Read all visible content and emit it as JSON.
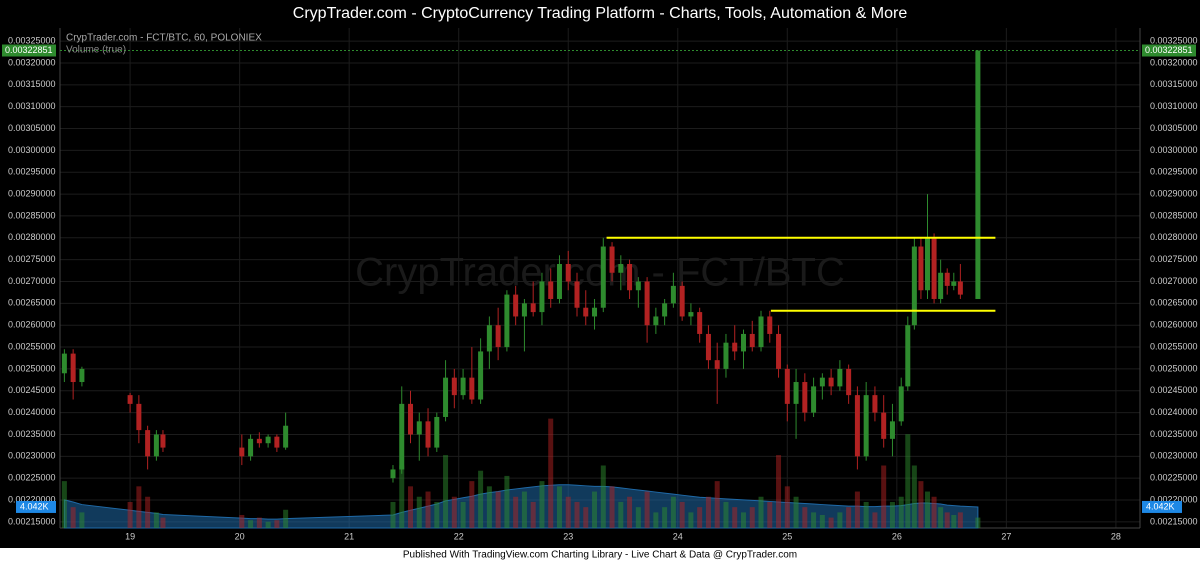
{
  "header": {
    "title": "CrypTrader.com  -  CryptoCurrency Trading Platform  -  Charts, Tools, Automation & More"
  },
  "footer": {
    "text": "Published With TradingView.com Charting Library - Live Chart & Data @ CrypTrader.com"
  },
  "chart_data": {
    "type": "candlestick",
    "title": "CrypTrader.com - FCT/BTC, 60, POLONIEX",
    "subtitle": "Volume (true)",
    "watermark": "CrypTrader.com - FCT/BTC",
    "up_color": "#2e8b2e",
    "down_color": "#b22222",
    "volume_ma_color": "#1f6aa8",
    "grid": true,
    "xlim": [
      18.36,
      28.22
    ],
    "xticks": [
      19,
      20,
      21,
      22,
      23,
      24,
      25,
      26,
      27,
      28
    ],
    "ylim": [
      0.002136,
      0.00328
    ],
    "yticks": [
      {
        "value": 0.00215,
        "label": "0.00215000"
      },
      {
        "value": 0.0022,
        "label": "0.00220000"
      },
      {
        "value": 0.00225,
        "label": "0.00225000"
      },
      {
        "value": 0.0023,
        "label": "0.00230000"
      },
      {
        "value": 0.00235,
        "label": "0.00235000"
      },
      {
        "value": 0.0024,
        "label": "0.00240000"
      },
      {
        "value": 0.00245,
        "label": "0.00245000"
      },
      {
        "value": 0.0025,
        "label": "0.00250000"
      },
      {
        "value": 0.00255,
        "label": "0.00255000"
      },
      {
        "value": 0.0026,
        "label": "0.00260000"
      },
      {
        "value": 0.00265,
        "label": "0.00265000"
      },
      {
        "value": 0.0027,
        "label": "0.00270000"
      },
      {
        "value": 0.00275,
        "label": "0.00275000"
      },
      {
        "value": 0.0028,
        "label": "0.00280000"
      },
      {
        "value": 0.00285,
        "label": "0.00285000"
      },
      {
        "value": 0.0029,
        "label": "0.00290000"
      },
      {
        "value": 0.00295,
        "label": "0.00295000"
      },
      {
        "value": 0.003,
        "label": "0.00300000"
      },
      {
        "value": 0.00305,
        "label": "0.00305000"
      },
      {
        "value": 0.0031,
        "label": "0.00310000"
      },
      {
        "value": 0.00315,
        "label": "0.00315000"
      },
      {
        "value": 0.0032,
        "label": "0.00320000"
      },
      {
        "value": 0.00325,
        "label": "0.00325000"
      }
    ],
    "y2lim": [
      0,
      96000
    ],
    "last_price": 0.00322851,
    "volume_last": {
      "value": 4042,
      "label": "4.042K"
    },
    "lines": [
      {
        "value": 0.0028,
        "x": [
          23.35,
          26.9
        ],
        "color": "#ffff00"
      },
      {
        "value": 0.002633,
        "x": [
          24.85,
          26.9
        ],
        "color": "#ffff00"
      }
    ],
    "candles": [
      {
        "x": 18.4,
        "open": 0.00249,
        "high": 0.002545,
        "low": 0.00247,
        "close": 0.002535,
        "volume": 9000,
        "volume_ma": 5400
      },
      {
        "x": 18.48,
        "open": 0.002535,
        "high": 0.002545,
        "low": 0.00243,
        "close": 0.00247,
        "volume": 4000,
        "volume_ma": 5000
      },
      {
        "x": 18.56,
        "open": 0.00247,
        "high": 0.002505,
        "low": 0.00246,
        "close": 0.0025,
        "volume": 3000,
        "volume_ma": 4500
      },
      {
        "x": 19.0,
        "open": 0.00244,
        "high": 0.002445,
        "low": 0.0024,
        "close": 0.00242,
        "volume": 5000,
        "volume_ma": 3400
      },
      {
        "x": 19.08,
        "open": 0.00242,
        "high": 0.00244,
        "low": 0.00233,
        "close": 0.00236,
        "volume": 8000,
        "volume_ma": 3200
      },
      {
        "x": 19.16,
        "open": 0.00236,
        "high": 0.00237,
        "low": 0.00227,
        "close": 0.0023,
        "volume": 6000,
        "volume_ma": 3000
      },
      {
        "x": 19.24,
        "open": 0.0023,
        "high": 0.00236,
        "low": 0.00229,
        "close": 0.00235,
        "volume": 3000,
        "volume_ma": 2800
      },
      {
        "x": 19.3,
        "open": 0.00235,
        "high": 0.00236,
        "low": 0.00231,
        "close": 0.00232,
        "volume": 2000,
        "volume_ma": 2600
      },
      {
        "x": 20.02,
        "open": 0.00232,
        "high": 0.00235,
        "low": 0.00228,
        "close": 0.0023,
        "volume": 2500,
        "volume_ma": 1900
      },
      {
        "x": 20.1,
        "open": 0.0023,
        "high": 0.00235,
        "low": 0.00229,
        "close": 0.00234,
        "volume": 1500,
        "volume_ma": 1800
      },
      {
        "x": 20.18,
        "open": 0.00234,
        "high": 0.002355,
        "low": 0.00232,
        "close": 0.00233,
        "volume": 2000,
        "volume_ma": 1800
      },
      {
        "x": 20.26,
        "open": 0.00233,
        "high": 0.00235,
        "low": 0.00232,
        "close": 0.002345,
        "volume": 1200,
        "volume_ma": 1700
      },
      {
        "x": 20.34,
        "open": 0.002345,
        "high": 0.00235,
        "low": 0.00231,
        "close": 0.00232,
        "volume": 1500,
        "volume_ma": 1700
      },
      {
        "x": 20.42,
        "open": 0.00232,
        "high": 0.0024,
        "low": 0.002315,
        "close": 0.00237,
        "volume": 3500,
        "volume_ma": 1800
      },
      {
        "x": 21.4,
        "open": 0.00225,
        "high": 0.00228,
        "low": 0.00224,
        "close": 0.00227,
        "volume": 5000,
        "volume_ma": 2500
      },
      {
        "x": 21.48,
        "open": 0.00227,
        "high": 0.00246,
        "low": 0.00226,
        "close": 0.00242,
        "volume": 12000,
        "volume_ma": 3000
      },
      {
        "x": 21.56,
        "open": 0.00242,
        "high": 0.00245,
        "low": 0.00233,
        "close": 0.00235,
        "volume": 8000,
        "volume_ma": 3400
      },
      {
        "x": 21.64,
        "open": 0.00235,
        "high": 0.0024,
        "low": 0.00229,
        "close": 0.00238,
        "volume": 6000,
        "volume_ma": 3800
      },
      {
        "x": 21.72,
        "open": 0.00238,
        "high": 0.00241,
        "low": 0.0023,
        "close": 0.00232,
        "volume": 7000,
        "volume_ma": 4200
      },
      {
        "x": 21.8,
        "open": 0.00232,
        "high": 0.0024,
        "low": 0.00231,
        "close": 0.00239,
        "volume": 5000,
        "volume_ma": 4600
      },
      {
        "x": 21.88,
        "open": 0.00239,
        "high": 0.00252,
        "low": 0.00238,
        "close": 0.00248,
        "volume": 14000,
        "volume_ma": 5200
      },
      {
        "x": 21.96,
        "open": 0.00248,
        "high": 0.0025,
        "low": 0.00241,
        "close": 0.00244,
        "volume": 6000,
        "volume_ma": 5500
      },
      {
        "x": 22.04,
        "open": 0.00244,
        "high": 0.0025,
        "low": 0.00243,
        "close": 0.00248,
        "volume": 5000,
        "volume_ma": 5800
      },
      {
        "x": 22.12,
        "open": 0.00248,
        "high": 0.00255,
        "low": 0.00242,
        "close": 0.00243,
        "volume": 9000,
        "volume_ma": 6100
      },
      {
        "x": 22.2,
        "open": 0.00243,
        "high": 0.00257,
        "low": 0.00242,
        "close": 0.00254,
        "volume": 11000,
        "volume_ma": 6500
      },
      {
        "x": 22.28,
        "open": 0.00254,
        "high": 0.00262,
        "low": 0.0025,
        "close": 0.0026,
        "volume": 8000,
        "volume_ma": 6800
      },
      {
        "x": 22.36,
        "open": 0.0026,
        "high": 0.00264,
        "low": 0.00252,
        "close": 0.00255,
        "volume": 7000,
        "volume_ma": 7000
      },
      {
        "x": 22.44,
        "open": 0.00255,
        "high": 0.00268,
        "low": 0.00254,
        "close": 0.00267,
        "volume": 10000,
        "volume_ma": 7300
      },
      {
        "x": 22.52,
        "open": 0.00267,
        "high": 0.00269,
        "low": 0.0026,
        "close": 0.00262,
        "volume": 6000,
        "volume_ma": 7500
      },
      {
        "x": 22.6,
        "open": 0.00262,
        "high": 0.00266,
        "low": 0.00254,
        "close": 0.00265,
        "volume": 7000,
        "volume_ma": 7700
      },
      {
        "x": 22.68,
        "open": 0.00265,
        "high": 0.0027,
        "low": 0.00262,
        "close": 0.00263,
        "volume": 5000,
        "volume_ma": 7900
      },
      {
        "x": 22.76,
        "open": 0.00263,
        "high": 0.00272,
        "low": 0.0026,
        "close": 0.0027,
        "volume": 9000,
        "volume_ma": 8100
      },
      {
        "x": 22.84,
        "open": 0.0027,
        "high": 0.00273,
        "low": 0.00264,
        "close": 0.00266,
        "volume": 21000,
        "volume_ma": 8200
      },
      {
        "x": 22.92,
        "open": 0.00266,
        "high": 0.00276,
        "low": 0.00265,
        "close": 0.00274,
        "volume": 8000,
        "volume_ma": 8300
      },
      {
        "x": 23.0,
        "open": 0.00274,
        "high": 0.00277,
        "low": 0.00268,
        "close": 0.0027,
        "volume": 6000,
        "volume_ma": 8300
      },
      {
        "x": 23.08,
        "open": 0.0027,
        "high": 0.00272,
        "low": 0.00262,
        "close": 0.00264,
        "volume": 5000,
        "volume_ma": 8200
      },
      {
        "x": 23.16,
        "open": 0.00264,
        "high": 0.00268,
        "low": 0.0026,
        "close": 0.00262,
        "volume": 4000,
        "volume_ma": 8100
      },
      {
        "x": 23.24,
        "open": 0.00262,
        "high": 0.00266,
        "low": 0.00259,
        "close": 0.00264,
        "volume": 7000,
        "volume_ma": 8000
      },
      {
        "x": 23.32,
        "open": 0.00264,
        "high": 0.0028,
        "low": 0.00263,
        "close": 0.00278,
        "volume": 12000,
        "volume_ma": 8000
      },
      {
        "x": 23.4,
        "open": 0.00278,
        "high": 0.00279,
        "low": 0.0027,
        "close": 0.00272,
        "volume": 8000,
        "volume_ma": 7900
      },
      {
        "x": 23.48,
        "open": 0.00272,
        "high": 0.00276,
        "low": 0.00268,
        "close": 0.00274,
        "volume": 5000,
        "volume_ma": 7700
      },
      {
        "x": 23.56,
        "open": 0.00274,
        "high": 0.00275,
        "low": 0.00266,
        "close": 0.00268,
        "volume": 6000,
        "volume_ma": 7500
      },
      {
        "x": 23.64,
        "open": 0.00268,
        "high": 0.00271,
        "low": 0.00264,
        "close": 0.0027,
        "volume": 4000,
        "volume_ma": 7300
      },
      {
        "x": 23.72,
        "open": 0.0027,
        "high": 0.00271,
        "low": 0.00256,
        "close": 0.0026,
        "volume": 7000,
        "volume_ma": 7100
      },
      {
        "x": 23.8,
        "open": 0.0026,
        "high": 0.00264,
        "low": 0.00258,
        "close": 0.00262,
        "volume": 3000,
        "volume_ma": 6900
      },
      {
        "x": 23.88,
        "open": 0.00262,
        "high": 0.00266,
        "low": 0.0026,
        "close": 0.00265,
        "volume": 4000,
        "volume_ma": 6700
      },
      {
        "x": 23.96,
        "open": 0.00265,
        "high": 0.00272,
        "low": 0.00264,
        "close": 0.00269,
        "volume": 6000,
        "volume_ma": 6500
      },
      {
        "x": 24.04,
        "open": 0.00269,
        "high": 0.0027,
        "low": 0.00261,
        "close": 0.00262,
        "volume": 5000,
        "volume_ma": 6300
      },
      {
        "x": 24.12,
        "open": 0.00262,
        "high": 0.00265,
        "low": 0.0026,
        "close": 0.00263,
        "volume": 3000,
        "volume_ma": 6100
      },
      {
        "x": 24.2,
        "open": 0.00263,
        "high": 0.00264,
        "low": 0.00256,
        "close": 0.00258,
        "volume": 4000,
        "volume_ma": 5900
      },
      {
        "x": 24.28,
        "open": 0.00258,
        "high": 0.0026,
        "low": 0.0025,
        "close": 0.00252,
        "volume": 6000,
        "volume_ma": 5800
      },
      {
        "x": 24.36,
        "open": 0.00252,
        "high": 0.00256,
        "low": 0.00242,
        "close": 0.0025,
        "volume": 9000,
        "volume_ma": 5700
      },
      {
        "x": 24.44,
        "open": 0.0025,
        "high": 0.00258,
        "low": 0.00248,
        "close": 0.00256,
        "volume": 5000,
        "volume_ma": 5600
      },
      {
        "x": 24.52,
        "open": 0.00256,
        "high": 0.0026,
        "low": 0.00252,
        "close": 0.00254,
        "volume": 4000,
        "volume_ma": 5500
      },
      {
        "x": 24.6,
        "open": 0.00254,
        "high": 0.00259,
        "low": 0.0025,
        "close": 0.00258,
        "volume": 3000,
        "volume_ma": 5400
      },
      {
        "x": 24.68,
        "open": 0.00258,
        "high": 0.00261,
        "low": 0.00254,
        "close": 0.00255,
        "volume": 4000,
        "volume_ma": 5300
      },
      {
        "x": 24.76,
        "open": 0.00255,
        "high": 0.002633,
        "low": 0.00254,
        "close": 0.00262,
        "volume": 6000,
        "volume_ma": 5200
      },
      {
        "x": 24.84,
        "open": 0.00262,
        "high": 0.002633,
        "low": 0.00256,
        "close": 0.00258,
        "volume": 5000,
        "volume_ma": 5100
      },
      {
        "x": 24.92,
        "open": 0.00258,
        "high": 0.0026,
        "low": 0.00248,
        "close": 0.0025,
        "volume": 14000,
        "volume_ma": 5000
      },
      {
        "x": 25.0,
        "open": 0.0025,
        "high": 0.00251,
        "low": 0.00238,
        "close": 0.00242,
        "volume": 8000,
        "volume_ma": 4900
      },
      {
        "x": 25.08,
        "open": 0.00242,
        "high": 0.0025,
        "low": 0.00234,
        "close": 0.00247,
        "volume": 6000,
        "volume_ma": 4800
      },
      {
        "x": 25.16,
        "open": 0.00247,
        "high": 0.00249,
        "low": 0.00238,
        "close": 0.0024,
        "volume": 4000,
        "volume_ma": 4700
      },
      {
        "x": 25.24,
        "open": 0.0024,
        "high": 0.00248,
        "low": 0.00239,
        "close": 0.00246,
        "volume": 3000,
        "volume_ma": 4600
      },
      {
        "x": 25.32,
        "open": 0.00246,
        "high": 0.00249,
        "low": 0.00243,
        "close": 0.00248,
        "volume": 2500,
        "volume_ma": 4500
      },
      {
        "x": 25.4,
        "open": 0.00248,
        "high": 0.0025,
        "low": 0.00244,
        "close": 0.00246,
        "volume": 2000,
        "volume_ma": 4400
      },
      {
        "x": 25.48,
        "open": 0.00246,
        "high": 0.00252,
        "low": 0.00245,
        "close": 0.0025,
        "volume": 3000,
        "volume_ma": 4300
      },
      {
        "x": 25.56,
        "open": 0.0025,
        "high": 0.00251,
        "low": 0.00242,
        "close": 0.00244,
        "volume": 4000,
        "volume_ma": 4200
      },
      {
        "x": 25.64,
        "open": 0.00244,
        "high": 0.00246,
        "low": 0.00227,
        "close": 0.0023,
        "volume": 7000,
        "volume_ma": 4200
      },
      {
        "x": 25.72,
        "open": 0.0023,
        "high": 0.00247,
        "low": 0.00229,
        "close": 0.00244,
        "volume": 5000,
        "volume_ma": 4100
      },
      {
        "x": 25.8,
        "open": 0.00244,
        "high": 0.00246,
        "low": 0.00238,
        "close": 0.0024,
        "volume": 3000,
        "volume_ma": 4100
      },
      {
        "x": 25.88,
        "open": 0.0024,
        "high": 0.00244,
        "low": 0.00232,
        "close": 0.00234,
        "volume": 12000,
        "volume_ma": 4200
      },
      {
        "x": 25.96,
        "open": 0.00234,
        "high": 0.00242,
        "low": 0.0023,
        "close": 0.00238,
        "volume": 5000,
        "volume_ma": 4200
      },
      {
        "x": 26.04,
        "open": 0.00238,
        "high": 0.00248,
        "low": 0.00237,
        "close": 0.00246,
        "volume": 6000,
        "volume_ma": 4300
      },
      {
        "x": 26.1,
        "open": 0.00246,
        "high": 0.00262,
        "low": 0.00245,
        "close": 0.0026,
        "volume": 18000,
        "volume_ma": 4500
      },
      {
        "x": 26.16,
        "open": 0.0026,
        "high": 0.0028,
        "low": 0.00259,
        "close": 0.00278,
        "volume": 12000,
        "volume_ma": 4700
      },
      {
        "x": 26.22,
        "open": 0.00278,
        "high": 0.0028,
        "low": 0.00266,
        "close": 0.00268,
        "volume": 9000,
        "volume_ma": 4800
      },
      {
        "x": 26.28,
        "open": 0.00268,
        "high": 0.0029,
        "low": 0.00266,
        "close": 0.0028,
        "volume": 7000,
        "volume_ma": 4800
      },
      {
        "x": 26.34,
        "open": 0.0028,
        "high": 0.00281,
        "low": 0.00265,
        "close": 0.00266,
        "volume": 6000,
        "volume_ma": 4700
      },
      {
        "x": 26.4,
        "open": 0.00266,
        "high": 0.00275,
        "low": 0.00265,
        "close": 0.00272,
        "volume": 4000,
        "volume_ma": 4600
      },
      {
        "x": 26.46,
        "open": 0.00272,
        "high": 0.00273,
        "low": 0.00267,
        "close": 0.00269,
        "volume": 3000,
        "volume_ma": 4400
      },
      {
        "x": 26.52,
        "open": 0.00269,
        "high": 0.00272,
        "low": 0.00268,
        "close": 0.0027,
        "volume": 2500,
        "volume_ma": 4300
      },
      {
        "x": 26.58,
        "open": 0.0027,
        "high": 0.00274,
        "low": 0.00266,
        "close": 0.00267,
        "volume": 3000,
        "volume_ma": 4200
      },
      {
        "x": 26.74,
        "open": 0.00266,
        "high": 0.00322851,
        "low": 0.00266,
        "close": 0.00322851,
        "volume": 2000,
        "volume_ma": 4042
      }
    ]
  }
}
